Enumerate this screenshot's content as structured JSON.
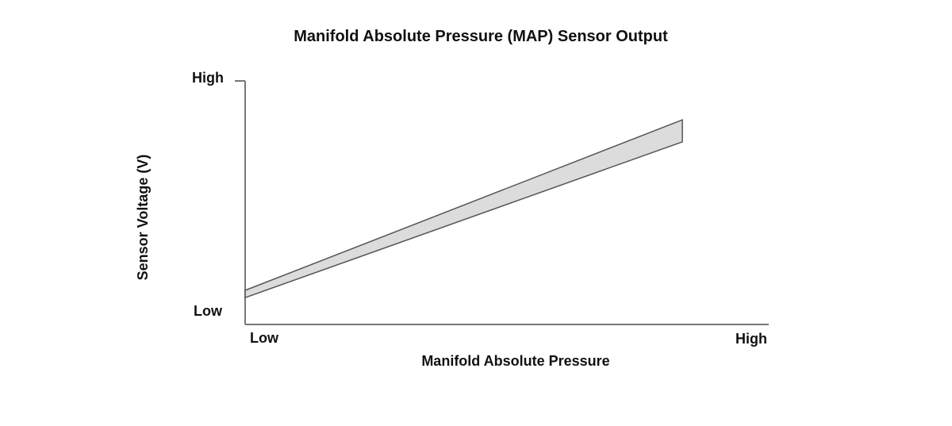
{
  "chart_data": {
    "type": "area",
    "title": "Manifold Absolute Pressure (MAP) Sensor Output",
    "xlabel": "Manifold Absolute Pressure",
    "ylabel": "Sensor Voltage (V)",
    "x_tick_labels": [
      "Low",
      "High"
    ],
    "y_tick_labels": [
      "Low",
      "High"
    ],
    "xlim": [
      0,
      1
    ],
    "ylim": [
      0,
      1
    ],
    "grid": false,
    "legend": "none",
    "band": {
      "x": [
        0,
        0.835
      ],
      "upper": [
        0.14,
        0.84
      ],
      "lower": [
        0.11,
        0.75
      ]
    },
    "colors": {
      "band_fill": "#dcdcdc",
      "band_stroke": "#555555",
      "axis": "#777777",
      "text": "#111111"
    }
  }
}
